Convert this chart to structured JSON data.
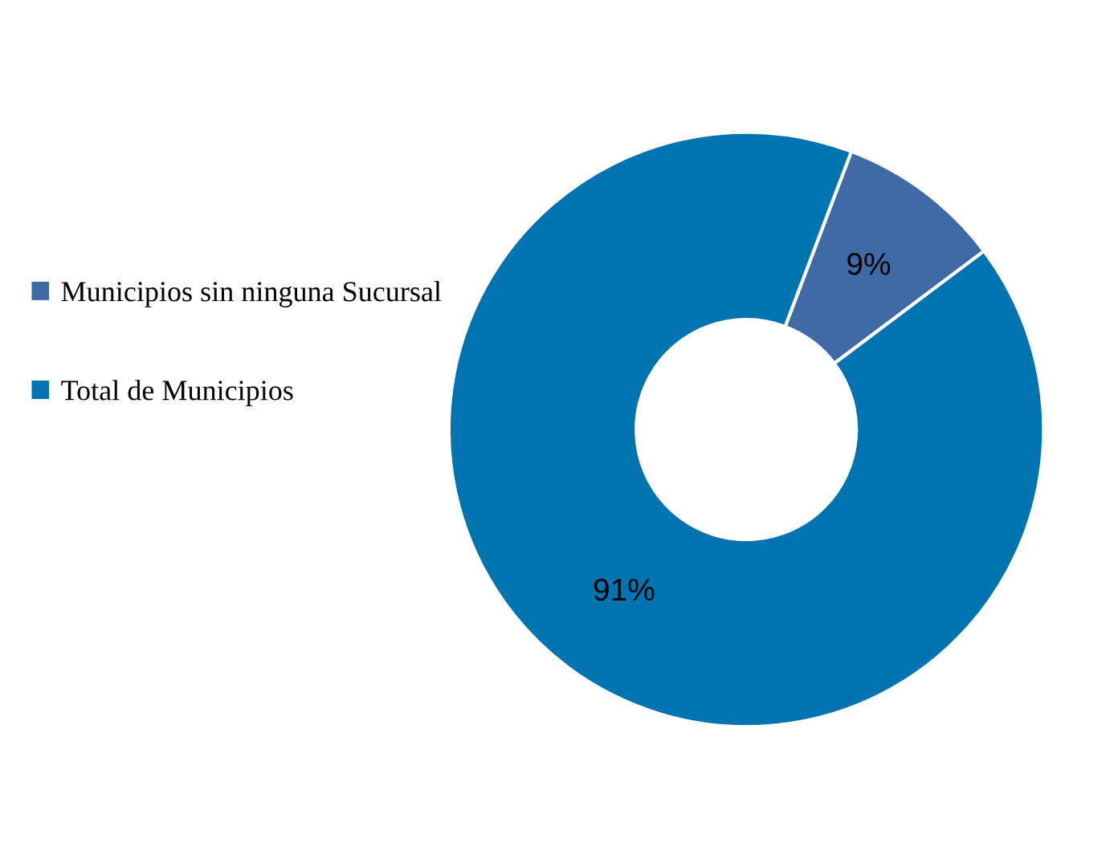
{
  "chart_data": {
    "type": "donut",
    "categories": [
      "Municipios sin ninguna Sucursal",
      "Total de Municipios"
    ],
    "values": [
      9,
      91
    ],
    "colors": [
      "#3f6aa6",
      "#0074b0"
    ],
    "value_labels": [
      "9%",
      "91%"
    ],
    "legend": "left"
  }
}
